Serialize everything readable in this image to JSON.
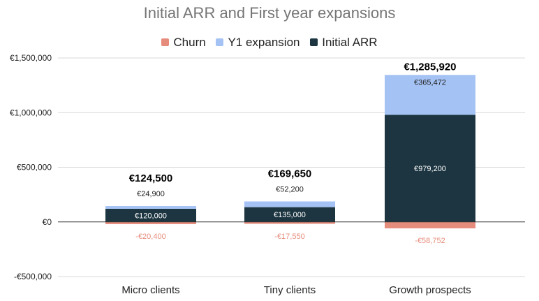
{
  "chart_data": {
    "type": "bar",
    "stacked": true,
    "title": "Initial ARR and First year expansions",
    "categories": [
      "Micro clients",
      "Tiny clients",
      "Growth prospects"
    ],
    "series": [
      {
        "name": "Churn",
        "color": "#e68c7c",
        "values": [
          -20400,
          -17550,
          -58752
        ],
        "labels": [
          "-€20,400",
          "-€17,550",
          "-€58,752"
        ]
      },
      {
        "name": "Y1 expansion",
        "color": "#a4c2f4",
        "values": [
          24900,
          52200,
          365472
        ],
        "labels": [
          "€24,900",
          "€52,200",
          "€365,472"
        ]
      },
      {
        "name": "Initial ARR",
        "color": "#1c3540",
        "values": [
          120000,
          135000,
          979200
        ],
        "labels": [
          "€120,000",
          "€135,000",
          "€979,200"
        ]
      }
    ],
    "totals": [
      "€124,500",
      "€169,650",
      "€1,285,920"
    ],
    "ylim": [
      -500000,
      1500000
    ],
    "yticks": [
      -500000,
      0,
      500000,
      1000000,
      1500000
    ],
    "ytick_labels": [
      "-€500,000",
      "€0",
      "€500,000",
      "€1,000,000",
      "€1,500,000"
    ],
    "legend_position": "top",
    "grid": true
  }
}
